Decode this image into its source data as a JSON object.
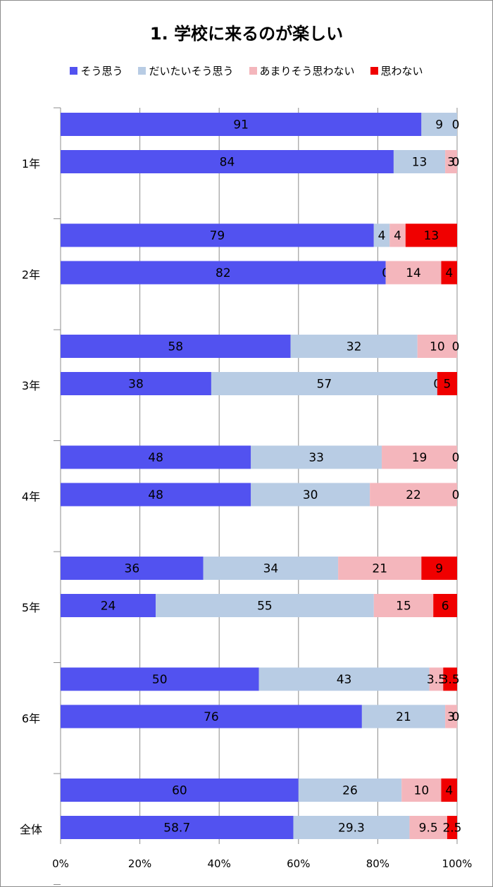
{
  "chart_data": {
    "type": "bar",
    "orientation": "horizontal",
    "stacked": "percent",
    "title": "1. 学校に来るのが楽しい",
    "legend_position": "top",
    "grid": true,
    "xlim": [
      0,
      100
    ],
    "x_ticks": [
      "0%",
      "20%",
      "40%",
      "60%",
      "80%",
      "100%"
    ],
    "series": [
      {
        "name": "そう思う",
        "color": "#5252f0"
      },
      {
        "name": "だいたいそう思う",
        "color": "#b8cce4"
      },
      {
        "name": "あまりそう思わない",
        "color": "#f4b6bc"
      },
      {
        "name": "思わない",
        "color": "#f00000"
      }
    ],
    "groups": [
      {
        "label": "1年",
        "bars": [
          {
            "values": [
              91,
              9,
              0,
              0
            ],
            "labels": [
              "91",
              "9",
              "",
              "0"
            ]
          },
          {
            "values": [
              84,
              13,
              3,
              0
            ],
            "labels": [
              "84",
              "13",
              "3",
              "0"
            ]
          }
        ]
      },
      {
        "label": "2年",
        "bars": [
          {
            "values": [
              79,
              4,
              4,
              13
            ],
            "labels": [
              "79",
              "4",
              "4",
              "13"
            ]
          },
          {
            "values": [
              82,
              0,
              14,
              4
            ],
            "labels": [
              "82",
              "0",
              "14",
              "4"
            ]
          }
        ]
      },
      {
        "label": "3年",
        "bars": [
          {
            "values": [
              58,
              32,
              10,
              0
            ],
            "labels": [
              "58",
              "32",
              "10",
              "0"
            ]
          },
          {
            "values": [
              38,
              57,
              0,
              5
            ],
            "labels": [
              "38",
              "57",
              "0",
              "5"
            ]
          }
        ]
      },
      {
        "label": "4年",
        "bars": [
          {
            "values": [
              48,
              33,
              19,
              0
            ],
            "labels": [
              "48",
              "33",
              "19",
              "0"
            ]
          },
          {
            "values": [
              48,
              30,
              22,
              0
            ],
            "labels": [
              "48",
              "30",
              "22",
              "0"
            ]
          }
        ]
      },
      {
        "label": "5年",
        "bars": [
          {
            "values": [
              36,
              34,
              21,
              9
            ],
            "labels": [
              "36",
              "34",
              "21",
              "9"
            ]
          },
          {
            "values": [
              24,
              55,
              15,
              6
            ],
            "labels": [
              "24",
              "55",
              "15",
              "6"
            ]
          }
        ]
      },
      {
        "label": "6年",
        "bars": [
          {
            "values": [
              50,
              43,
              3.5,
              3.5
            ],
            "labels": [
              "50",
              "43",
              "3.5",
              "3.5"
            ]
          },
          {
            "values": [
              76,
              21,
              3,
              0
            ],
            "labels": [
              "76",
              "21",
              "3",
              "0"
            ]
          }
        ]
      },
      {
        "label": "全体",
        "bars": [
          {
            "values": [
              60,
              26,
              10,
              4
            ],
            "labels": [
              "60",
              "26",
              "10",
              "4"
            ]
          },
          {
            "values": [
              58.7,
              29.3,
              9.5,
              2.5
            ],
            "labels": [
              "58.7",
              "29.3",
              "9.5",
              "2.5"
            ]
          }
        ]
      }
    ]
  }
}
